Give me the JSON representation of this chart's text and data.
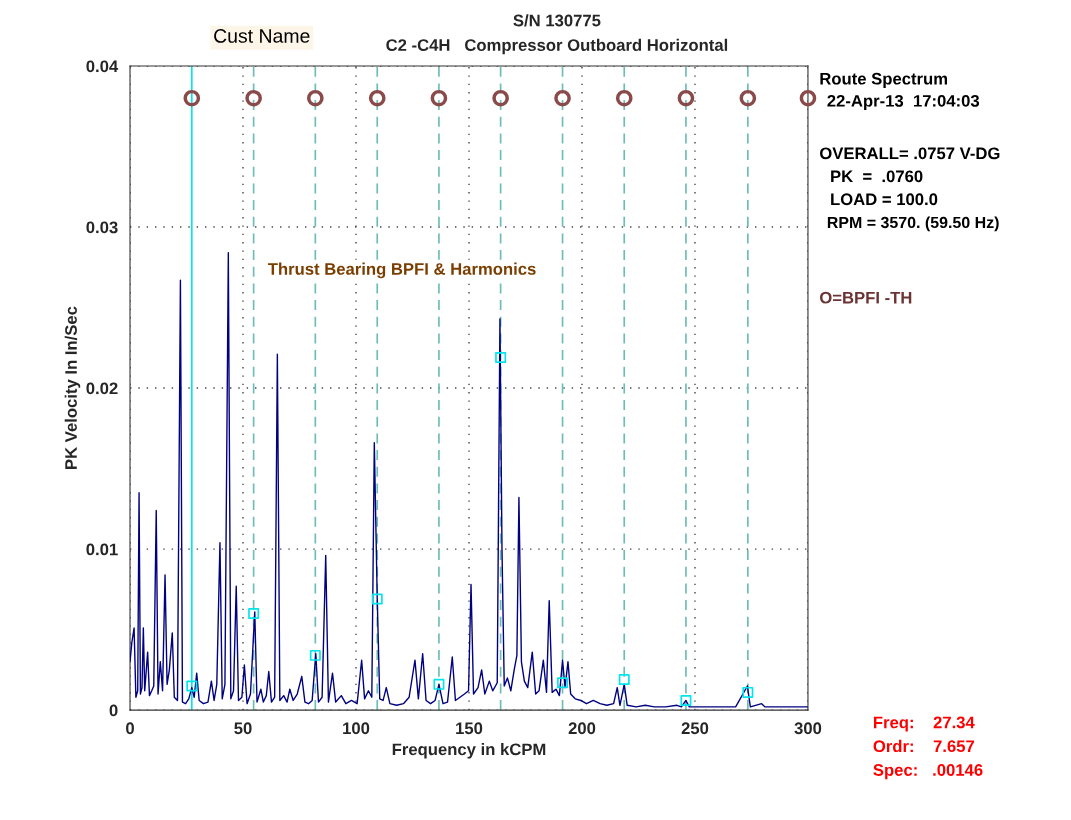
{
  "chart_data": {
    "type": "line",
    "title": "S/N 130775",
    "subtitle": "C2 -C4H   Compressor Outboard Horizontal",
    "xlabel": "Frequency in kCPM",
    "ylabel": "PK Velocity In In/Sec",
    "xlim": [
      0,
      300
    ],
    "xticks": [
      0,
      50,
      100,
      150,
      200,
      250,
      300
    ],
    "ylim": [
      0,
      0.04
    ],
    "yticks": [
      0,
      0.01,
      0.02,
      0.03,
      0.04
    ],
    "grid": true,
    "legend": false,
    "series": [
      {
        "color": "#000080",
        "marker": "none",
        "line_style": "solid",
        "x": [
          0,
          0.8,
          1.8,
          2.6,
          3.4,
          4.0,
          4.6,
          5.3,
          5.9,
          6.5,
          7.8,
          8.6,
          9.6,
          10.5,
          11.6,
          12.4,
          13.4,
          14.4,
          15.5,
          16.4,
          17.4,
          18.7,
          19.6,
          21.0,
          22.3,
          23.2,
          24.6,
          26.0,
          27.34,
          28.4,
          29.5,
          30.6,
          32.5,
          34.5,
          36.0,
          37.2,
          38.4,
          39.8,
          40.8,
          42.0,
          43.5,
          44.6,
          45.8,
          47.0,
          48.0,
          49.5,
          50.6,
          51.8,
          53.3,
          55.2,
          56.2,
          57.9,
          59.0,
          60.3,
          61.4,
          62.6,
          64.0,
          65.2,
          66.3,
          68.0,
          69.5,
          70.7,
          72.2,
          74.0,
          76.0,
          77.4,
          79.0,
          80.6,
          82.2,
          83.4,
          85.0,
          86.6,
          87.8,
          89.6,
          91.0,
          93.5,
          95.5,
          98.0,
          100.5,
          102.5,
          103.8,
          105.5,
          107.0,
          108.1,
          109.4,
          110.5,
          112.0,
          113.4,
          115.0,
          118.0,
          121.0,
          123.5,
          126.1,
          127.6,
          129.5,
          131.0,
          133.0,
          135.0,
          136.7,
          138.5,
          140.5,
          142.6,
          144.0,
          146.0,
          148.0,
          149.8,
          150.9,
          152.0,
          154.0,
          155.6,
          157.0,
          159.0,
          160.5,
          162.5,
          163.7,
          164.6,
          165.6,
          167.0,
          168.5,
          170.0,
          171.2,
          172.1,
          173.2,
          174.5,
          176.0,
          178.0,
          179.5,
          181.0,
          182.9,
          184.3,
          185.5,
          186.8,
          188.5,
          190.0,
          191.4,
          192.5,
          193.8,
          195.0,
          197.0,
          199.5,
          202.0,
          205.0,
          208.0,
          211.0,
          214.0,
          215.6,
          216.8,
          218.7,
          220.0,
          224.0,
          228.0,
          232.0,
          237.0,
          242.0,
          244.0,
          246.0,
          247.5,
          252.0,
          256.0,
          262.0,
          268.0,
          273.2,
          274.5,
          279.5,
          281.0,
          286.0,
          292.0,
          296.0,
          300.0
        ],
        "values": [
          0.003,
          0.0042,
          0.0051,
          0.0008,
          0.0012,
          0.0135,
          0.001,
          0.0014,
          0.0051,
          0.0012,
          0.0036,
          0.0009,
          0.0012,
          0.0015,
          0.0124,
          0.001,
          0.003,
          0.0012,
          0.0084,
          0.0016,
          0.0025,
          0.0048,
          0.0008,
          0.0006,
          0.0267,
          0.0005,
          0.0004,
          0.0007,
          0.0014,
          0.0008,
          0.0023,
          0.0006,
          0.0004,
          0.0005,
          0.0018,
          0.0006,
          0.0016,
          0.0104,
          0.0007,
          0.0016,
          0.0284,
          0.0007,
          0.0012,
          0.0077,
          0.0006,
          0.0008,
          0.0028,
          0.0004,
          0.001,
          0.0061,
          0.0005,
          0.0013,
          0.0005,
          0.0009,
          0.0024,
          0.0005,
          0.0008,
          0.0221,
          0.0006,
          0.0009,
          0.0005,
          0.0013,
          0.0006,
          0.001,
          0.0021,
          0.0005,
          0.0004,
          0.0006,
          0.0035,
          0.0005,
          0.0008,
          0.0096,
          0.0005,
          0.0023,
          0.0005,
          0.0009,
          0.0004,
          0.0006,
          0.0004,
          0.0031,
          0.0007,
          0.0012,
          0.0008,
          0.0166,
          0.0069,
          0.0007,
          0.0006,
          0.0014,
          0.0004,
          0.0003,
          0.0004,
          0.0008,
          0.0031,
          0.0007,
          0.0035,
          0.0006,
          0.0004,
          0.0006,
          0.0016,
          0.0004,
          0.0005,
          0.0033,
          0.0006,
          0.0008,
          0.001,
          0.0012,
          0.0078,
          0.001,
          0.0014,
          0.0025,
          0.001,
          0.0018,
          0.0012,
          0.0017,
          0.0243,
          0.01,
          0.0015,
          0.002,
          0.0012,
          0.0025,
          0.0034,
          0.0132,
          0.003,
          0.0018,
          0.0014,
          0.0036,
          0.001,
          0.0012,
          0.0031,
          0.0011,
          0.0068,
          0.0011,
          0.0013,
          0.0009,
          0.0031,
          0.0014,
          0.003,
          0.001,
          0.0007,
          0.0006,
          0.0004,
          0.0006,
          0.0004,
          0.0003,
          0.0004,
          0.0014,
          0.0003,
          0.0016,
          0.0003,
          0.0002,
          0.0003,
          0.0002,
          0.0002,
          0.0003,
          0.0002,
          0.0006,
          0.0002,
          0.0002,
          0.0002,
          0.0002,
          0.0002,
          0.0015,
          0.0002,
          0.0004,
          0.0002,
          0.0002,
          0.0002,
          0.0002,
          0.0002
        ]
      },
      {
        "type": "scatter",
        "color": "#00e5ee",
        "marker": "square",
        "x": [
          27.34,
          54.7,
          82.0,
          109.4,
          136.7,
          164.0,
          191.4,
          218.7,
          246.0,
          273.4
        ],
        "values": [
          0.0015,
          0.006,
          0.0034,
          0.0069,
          0.0016,
          0.0219,
          0.0017,
          0.0019,
          0.0006,
          0.0011
        ]
      },
      {
        "type": "scatter",
        "color": "#8b4a4a",
        "marker": "circle",
        "x": [
          27.34,
          54.7,
          82.0,
          109.4,
          136.7,
          164.0,
          191.4,
          218.7,
          246.0,
          273.4,
          300.0
        ],
        "values": [
          0.038,
          0.038,
          0.038,
          0.038,
          0.038,
          0.038,
          0.038,
          0.038,
          0.038,
          0.038,
          0.038
        ]
      }
    ],
    "ref_lines": [
      {
        "axis": "x",
        "value": 27.34,
        "color": "#00e5ee",
        "line_style": "solid"
      },
      {
        "axis": "x",
        "value": 54.7,
        "color": "#6cbdb5",
        "line_style": "dashed"
      },
      {
        "axis": "x",
        "value": 82.0,
        "color": "#6cbdb5",
        "line_style": "dashed"
      },
      {
        "axis": "x",
        "value": 109.4,
        "color": "#6cbdb5",
        "line_style": "dashed"
      },
      {
        "axis": "x",
        "value": 136.7,
        "color": "#6cbdb5",
        "line_style": "dashed"
      },
      {
        "axis": "x",
        "value": 164.0,
        "color": "#6cbdb5",
        "line_style": "dashed"
      },
      {
        "axis": "x",
        "value": 191.4,
        "color": "#6cbdb5",
        "line_style": "dashed"
      },
      {
        "axis": "x",
        "value": 218.7,
        "color": "#6cbdb5",
        "line_style": "dashed"
      },
      {
        "axis": "x",
        "value": 246.0,
        "color": "#6cbdb5",
        "line_style": "dashed"
      },
      {
        "axis": "x",
        "value": 273.4,
        "color": "#6cbdb5",
        "line_style": "dashed"
      }
    ],
    "annotations": [
      "Cust Name",
      "Thrust Bearing BPFI & Harmonics",
      "Route Spectrum",
      "22-Apr-13  17:04:03",
      "OVERALL= .0757 V-DG",
      "PK  =  .0760",
      "LOAD = 100.0",
      "RPM = 3570. (59.50 Hz)",
      "O=BPFI -TH",
      "Freq:    27.34",
      "Ordr:    7.657",
      "Spec:   .00146"
    ]
  }
}
